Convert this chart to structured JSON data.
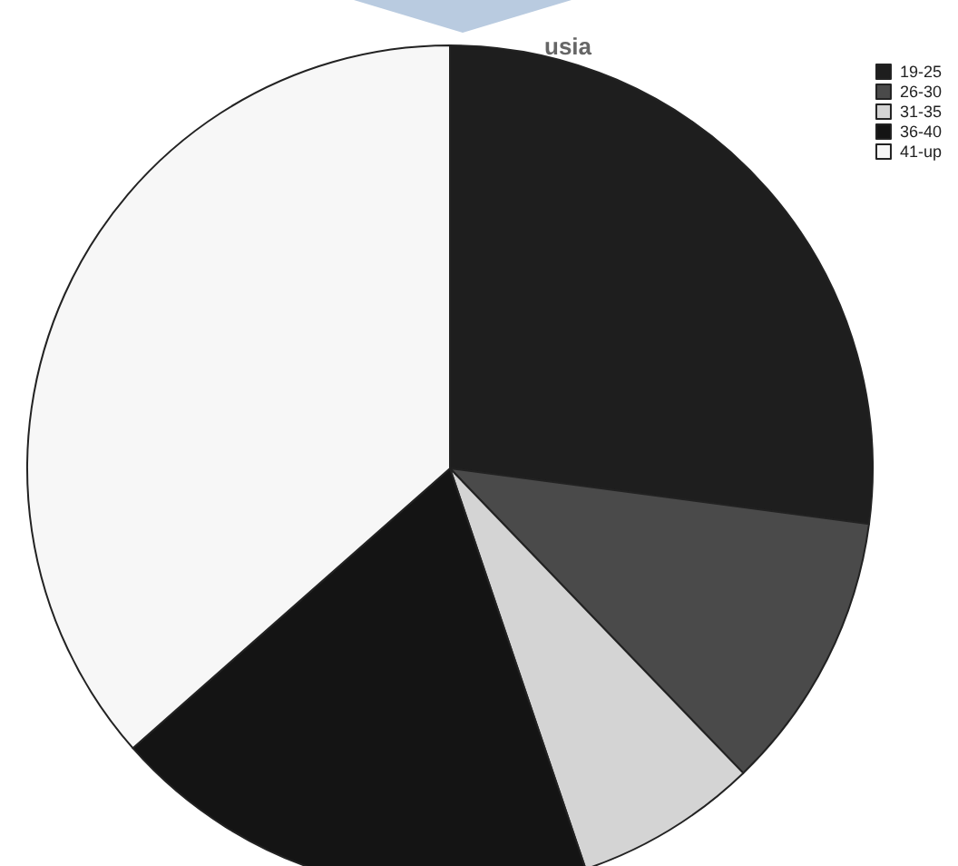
{
  "chart_data": {
    "type": "pie",
    "title": "usia",
    "categories": [
      "19-25",
      "26-30",
      "31-35",
      "36-40",
      "41-up"
    ],
    "values": [
      27.1,
      10.7,
      7.0,
      18.7,
      36.5
    ],
    "colors": [
      "#1e1e1e",
      "#4a4a4a",
      "#d4d4d4",
      "#141414",
      "#f7f7f7"
    ],
    "legend": "top right"
  }
}
